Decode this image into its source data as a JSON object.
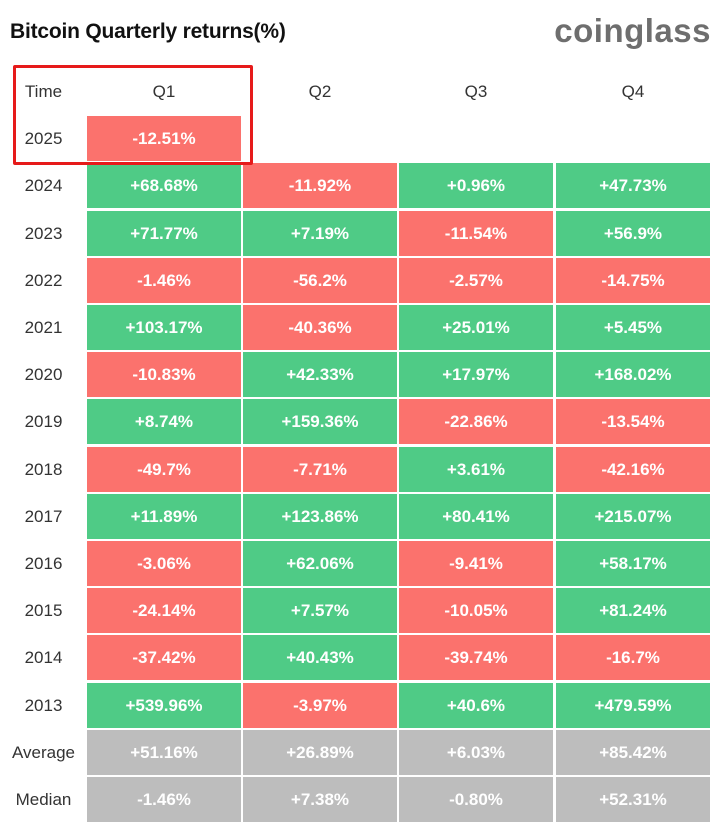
{
  "header": {
    "title": "Bitcoin Quarterly returns(%)",
    "logo": "coinglass"
  },
  "chart_data": {
    "type": "table",
    "title": "Bitcoin Quarterly returns(%)",
    "corner_label": "Time",
    "columns": [
      "Q1",
      "Q2",
      "Q3",
      "Q4"
    ],
    "rows": [
      {
        "label": "2025",
        "values": [
          "-12.51%",
          null,
          null,
          null
        ]
      },
      {
        "label": "2024",
        "values": [
          "+68.68%",
          "-11.92%",
          "+0.96%",
          "+47.73%"
        ]
      },
      {
        "label": "2023",
        "values": [
          "+71.77%",
          "+7.19%",
          "-11.54%",
          "+56.9%"
        ]
      },
      {
        "label": "2022",
        "values": [
          "-1.46%",
          "-56.2%",
          "-2.57%",
          "-14.75%"
        ]
      },
      {
        "label": "2021",
        "values": [
          "+103.17%",
          "-40.36%",
          "+25.01%",
          "+5.45%"
        ]
      },
      {
        "label": "2020",
        "values": [
          "-10.83%",
          "+42.33%",
          "+17.97%",
          "+168.02%"
        ]
      },
      {
        "label": "2019",
        "values": [
          "+8.74%",
          "+159.36%",
          "-22.86%",
          "-13.54%"
        ]
      },
      {
        "label": "2018",
        "values": [
          "-49.7%",
          "-7.71%",
          "+3.61%",
          "-42.16%"
        ]
      },
      {
        "label": "2017",
        "values": [
          "+11.89%",
          "+123.86%",
          "+80.41%",
          "+215.07%"
        ]
      },
      {
        "label": "2016",
        "values": [
          "-3.06%",
          "+62.06%",
          "-9.41%",
          "+58.17%"
        ]
      },
      {
        "label": "2015",
        "values": [
          "-24.14%",
          "+7.57%",
          "-10.05%",
          "+81.24%"
        ]
      },
      {
        "label": "2014",
        "values": [
          "-37.42%",
          "+40.43%",
          "-39.74%",
          "-16.7%"
        ]
      },
      {
        "label": "2013",
        "values": [
          "+539.96%",
          "-3.97%",
          "+40.6%",
          "+479.59%"
        ]
      }
    ],
    "summary": [
      {
        "label": "Average",
        "values": [
          "+51.16%",
          "+26.89%",
          "+6.03%",
          "+85.42%"
        ]
      },
      {
        "label": "Median",
        "values": [
          "-1.46%",
          "+7.38%",
          "-0.80%",
          "+52.31%"
        ]
      }
    ],
    "colors": {
      "positive": "#4fcb86",
      "negative": "#fb726d",
      "summary": "#bdbdbd",
      "highlight": "#e61a1a"
    }
  }
}
